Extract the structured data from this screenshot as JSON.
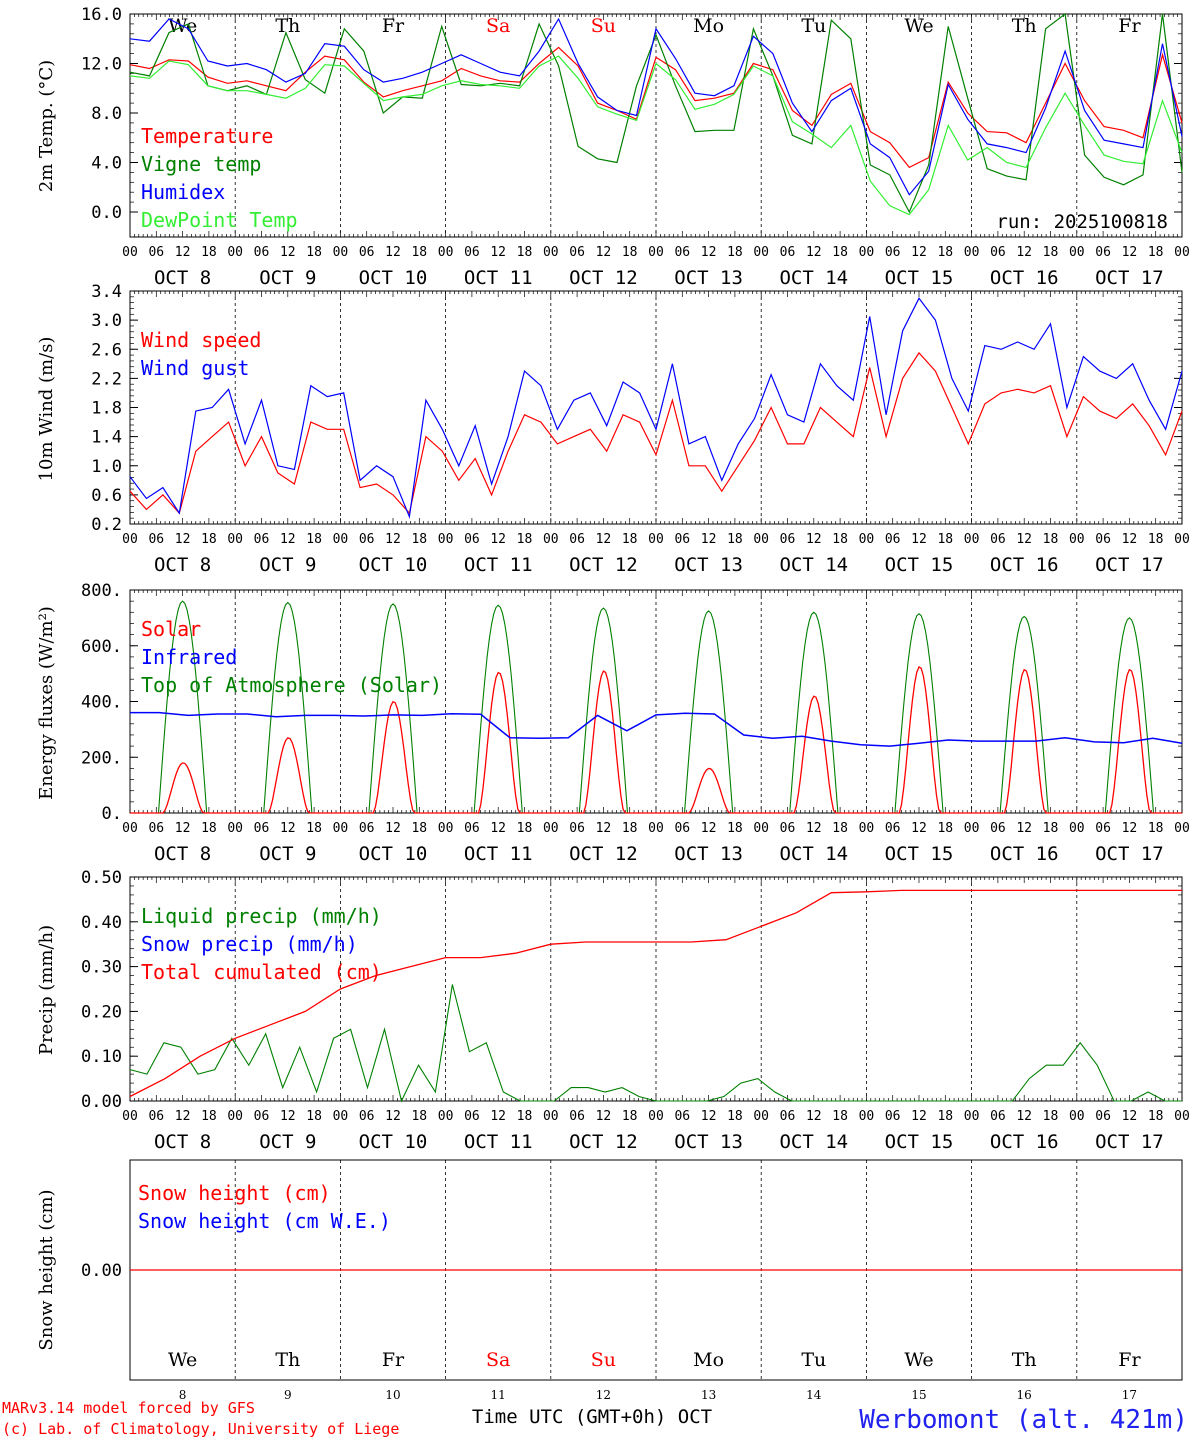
{
  "chart_data": {
    "type": "line",
    "station": "Werbomont (alt. 421m)",
    "run": "run: 2025100818",
    "credit_model": "MARv3.14 model forced by GFS",
    "credit_lab": "(c) Lab. of Climatology, University of Liege",
    "xlabel": "Time UTC (GMT+0h) OCT",
    "hour_ticks": [
      "00",
      "06",
      "12",
      "18"
    ],
    "hour_tick_end": "00",
    "dates": [
      "OCT  8",
      "OCT  9",
      "OCT 10",
      "OCT 11",
      "OCT 12",
      "OCT 13",
      "OCT 14",
      "OCT 15",
      "OCT 16",
      "OCT 17"
    ],
    "day_numbers": [
      "8",
      "9",
      "10",
      "11",
      "12",
      "13",
      "14",
      "15",
      "16",
      "17"
    ],
    "weekdays": [
      "We",
      "Th",
      "Fr",
      "Sa",
      "Su",
      "Mo",
      "Tu",
      "We",
      "Th",
      "Fr"
    ],
    "weekend_flags": [
      false,
      false,
      false,
      true,
      true,
      false,
      false,
      false,
      false,
      false
    ],
    "colors": {
      "red": "#ff0000",
      "green": "#008000",
      "blue": "#0000ff",
      "lightgreen": "#33ee33",
      "weekend": "#ff0000",
      "station": "#2222ee"
    },
    "panels": [
      {
        "id": "temp",
        "ylabel": "2m Temp. (°C)",
        "ylim": [
          -1.8,
          16
        ],
        "yticks": [
          0,
          4,
          8,
          12,
          16
        ],
        "ytick_labels": [
          "0.0",
          "4.0",
          "8.0",
          "12.0",
          "16.0"
        ],
        "top_weekdays": true,
        "series": [
          {
            "name": "Temperature",
            "color": "#ff0000",
            "values": [
              11.9,
              11.6,
              12.3,
              12.2,
              10.9,
              10.4,
              10.6,
              10.2,
              9.8,
              11.3,
              12.6,
              12.3,
              10.5,
              9.3,
              9.8,
              10.2,
              10.6,
              11.6,
              11.0,
              10.6,
              10.5,
              12.0,
              13.3,
              11.8,
              8.8,
              8.2,
              7.5,
              12.5,
              11.5,
              9.0,
              9.2,
              9.6,
              12.0,
              11.5,
              8.2,
              7.0,
              9.5,
              10.4,
              6.5,
              5.6,
              3.6,
              4.4,
              10.5,
              8.0,
              6.5,
              6.4,
              5.6,
              8.8,
              12.0,
              9.0,
              6.9,
              6.6,
              6.0,
              12.7,
              7.2
            ]
          },
          {
            "name": "Vigne temp",
            "color": "#008000",
            "values": [
              11.3,
              11.0,
              14.5,
              15.2,
              10.2,
              9.8,
              10.2,
              9.5,
              14.5,
              10.7,
              9.6,
              14.8,
              13.0,
              8.0,
              9.3,
              9.2,
              15.0,
              10.3,
              10.2,
              10.4,
              10.2,
              15.2,
              11.8,
              5.3,
              4.3,
              4.0,
              10.2,
              14.3,
              10.2,
              6.5,
              6.6,
              6.6,
              14.8,
              11.0,
              6.2,
              5.5,
              15.5,
              14.0,
              3.8,
              3.0,
              0.0,
              3.8,
              15.0,
              9.2,
              3.5,
              2.9,
              2.6,
              14.8,
              16.0,
              4.6,
              2.8,
              2.2,
              3.0,
              16.0,
              3.2
            ]
          },
          {
            "name": "Humidex",
            "color": "#0000ff",
            "values": [
              14.0,
              13.8,
              15.6,
              14.8,
              12.2,
              11.8,
              12.0,
              11.5,
              10.5,
              11.2,
              13.6,
              13.4,
              11.5,
              10.5,
              10.8,
              11.3,
              12.0,
              12.7,
              12.0,
              11.3,
              11.0,
              13.0,
              15.6,
              12.0,
              9.3,
              8.2,
              7.8,
              14.8,
              12.4,
              9.6,
              9.4,
              10.2,
              14.2,
              12.8,
              8.8,
              6.5,
              9.0,
              10.0,
              5.5,
              4.4,
              1.4,
              3.3,
              10.3,
              7.5,
              5.5,
              5.2,
              4.8,
              8.4,
              13.0,
              8.2,
              5.8,
              5.5,
              5.2,
              13.6,
              6.1
            ]
          },
          {
            "name": "DewPoint Temp",
            "color": "#33ee33",
            "values": [
              11.0,
              10.8,
              12.2,
              11.9,
              10.2,
              9.8,
              9.8,
              9.5,
              9.2,
              10.0,
              11.9,
              11.8,
              10.4,
              9.0,
              9.3,
              9.5,
              10.2,
              10.6,
              10.3,
              10.2,
              10.0,
              11.8,
              12.6,
              10.8,
              8.5,
              7.9,
              7.4,
              12.0,
              10.7,
              8.3,
              8.7,
              9.5,
              11.8,
              11.0,
              7.3,
              6.3,
              5.2,
              7.0,
              2.5,
              0.5,
              -0.2,
              1.8,
              7.0,
              4.2,
              5.2,
              4.0,
              3.6,
              6.8,
              9.6,
              7.0,
              4.6,
              4.1,
              3.9,
              9.0,
              4.8
            ]
          }
        ],
        "legend": [
          "Temperature",
          "Vigne temp",
          "Humidex",
          "DewPoint Temp"
        ]
      },
      {
        "id": "wind",
        "ylabel": "10m Wind (m/s)",
        "ylim": [
          0.2,
          3.4
        ],
        "yticks": [
          0.2,
          0.6,
          1.0,
          1.4,
          1.8,
          2.2,
          2.6,
          3.0,
          3.4
        ],
        "ytick_labels": [
          "0.2",
          "0.6",
          "1.0",
          "1.4",
          "1.8",
          "2.2",
          "2.6",
          "3.0",
          "3.4"
        ],
        "top_weekdays": false,
        "series": [
          {
            "name": "Wind speed",
            "color": "#ff0000",
            "values": [
              0.65,
              0.4,
              0.6,
              0.35,
              1.2,
              1.4,
              1.6,
              1.0,
              1.4,
              0.9,
              0.75,
              1.6,
              1.5,
              1.5,
              0.7,
              0.75,
              0.6,
              0.35,
              1.4,
              1.2,
              0.8,
              1.1,
              0.6,
              1.2,
              1.7,
              1.6,
              1.3,
              1.4,
              1.5,
              1.2,
              1.7,
              1.6,
              1.15,
              1.9,
              1.0,
              1.0,
              0.65,
              1.0,
              1.35,
              1.8,
              1.3,
              1.3,
              1.8,
              1.6,
              1.4,
              2.35,
              1.4,
              2.2,
              2.55,
              2.3,
              1.8,
              1.3,
              1.85,
              2.0,
              2.05,
              2.0,
              2.1,
              1.4,
              1.95,
              1.75,
              1.65,
              1.85,
              1.55,
              1.15,
              1.75
            ]
          },
          {
            "name": "Wind gust",
            "color": "#0000ff",
            "values": [
              0.85,
              0.55,
              0.7,
              0.35,
              1.75,
              1.8,
              2.05,
              1.3,
              1.9,
              1.0,
              0.95,
              2.1,
              1.95,
              2.0,
              0.8,
              1.0,
              0.85,
              0.3,
              1.9,
              1.5,
              1.0,
              1.55,
              0.75,
              1.4,
              2.3,
              2.1,
              1.5,
              1.9,
              2.0,
              1.55,
              2.15,
              2.0,
              1.5,
              2.4,
              1.3,
              1.4,
              0.8,
              1.3,
              1.65,
              2.25,
              1.7,
              1.6,
              2.4,
              2.1,
              1.9,
              3.05,
              1.7,
              2.85,
              3.3,
              3.0,
              2.2,
              1.75,
              2.65,
              2.6,
              2.7,
              2.6,
              2.95,
              1.8,
              2.5,
              2.3,
              2.2,
              2.4,
              1.9,
              1.5,
              2.3
            ]
          }
        ],
        "legend": [
          "Wind speed",
          "Wind gust"
        ]
      },
      {
        "id": "energy",
        "ylabel": "Energy fluxes (W/m²)",
        "ylim": [
          0,
          800
        ],
        "yticks": [
          0,
          200,
          400,
          600,
          800
        ],
        "ytick_labels": [
          "0.",
          "200.",
          "400.",
          "600.",
          "800."
        ],
        "top_weekdays": false,
        "solar_peaks": [
          180,
          270,
          400,
          505,
          510,
          160,
          420,
          525,
          515,
          515
        ],
        "toa_peaks": [
          760,
          755,
          750,
          745,
          735,
          725,
          720,
          715,
          705,
          700
        ],
        "infrared": [
          360,
          360,
          350,
          355,
          355,
          345,
          350,
          350,
          348,
          352,
          350,
          356,
          354,
          270,
          268,
          270,
          350,
          295,
          352,
          358,
          355,
          280,
          268,
          275,
          258,
          245,
          240,
          250,
          262,
          258,
          258,
          258,
          270,
          255,
          252,
          268,
          250
        ],
        "series": [
          {
            "name": "Solar",
            "color": "#ff0000"
          },
          {
            "name": "Infrared",
            "color": "#0000ff"
          },
          {
            "name": "Top of Atmosphere (Solar)",
            "color": "#008000"
          }
        ],
        "legend": [
          "Solar",
          "Infrared",
          "Top of Atmosphere (Solar)"
        ]
      },
      {
        "id": "precip",
        "ylabel": "Precip (mm/h)",
        "ylim": [
          0,
          0.5
        ],
        "yticks": [
          0,
          0.1,
          0.2,
          0.3,
          0.4,
          0.5
        ],
        "ytick_labels": [
          "0.00",
          "0.10",
          "0.20",
          "0.30",
          "0.40",
          "0.50"
        ],
        "top_weekdays": false,
        "series": [
          {
            "name": "Liquid precip (mm/h)",
            "color": "#008000",
            "values": [
              0.07,
              0.06,
              0.13,
              0.12,
              0.06,
              0.07,
              0.14,
              0.08,
              0.15,
              0.03,
              0.12,
              0.02,
              0.14,
              0.16,
              0.03,
              0.16,
              0.0,
              0.08,
              0.02,
              0.26,
              0.11,
              0.13,
              0.02,
              0.0,
              0.0,
              0.0,
              0.03,
              0.03,
              0.02,
              0.03,
              0.01,
              0.0,
              0.0,
              0.0,
              0.0,
              0.01,
              0.04,
              0.05,
              0.02,
              0.0,
              0.0,
              0.0,
              0.0,
              0.0,
              0.0,
              0.0,
              0.0,
              0.0,
              0.0,
              0.0,
              0.0,
              0.0,
              0.0,
              0.05,
              0.08,
              0.08,
              0.13,
              0.08,
              0.0,
              0.0,
              0.02,
              0.0,
              0.0
            ]
          },
          {
            "name": "Snow precip (mm/h)",
            "color": "#0000ff",
            "values": []
          },
          {
            "name": "Total cumulated (cm)",
            "color": "#ff0000",
            "values": [
              0.01,
              0.05,
              0.1,
              0.14,
              0.17,
              0.2,
              0.25,
              0.28,
              0.3,
              0.32,
              0.32,
              0.33,
              0.35,
              0.355,
              0.355,
              0.355,
              0.355,
              0.36,
              0.39,
              0.42,
              0.465,
              0.467,
              0.47,
              0.47,
              0.47,
              0.47,
              0.47,
              0.47,
              0.47,
              0.47,
              0.47
            ]
          }
        ],
        "legend": [
          "Liquid precip (mm/h)",
          "Snow precip (mm/h)",
          "Total cumulated (cm)"
        ]
      },
      {
        "id": "snow",
        "ylabel": "Snow height (cm)",
        "ylim": [
          -1,
          1
        ],
        "yticks": [
          0
        ],
        "ytick_labels": [
          "0.00"
        ],
        "top_weekdays": false,
        "series": [
          {
            "name": "Snow height (cm)",
            "color": "#ff0000",
            "values": [
              0,
              0
            ]
          },
          {
            "name": "Snow height (cm W.E.)",
            "color": "#0000ff",
            "values": [
              0,
              0
            ]
          }
        ],
        "legend": [
          "Snow height (cm)",
          "Snow height (cm W.E.)"
        ]
      }
    ]
  }
}
